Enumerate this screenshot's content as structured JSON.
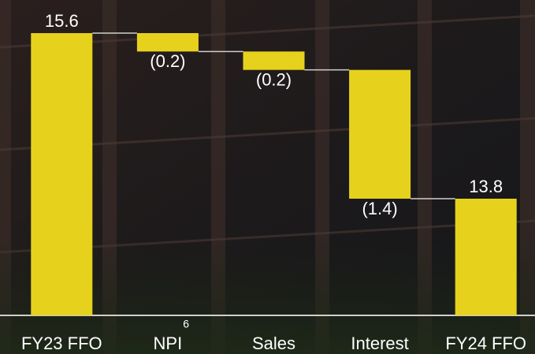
{
  "chart_data": {
    "type": "waterfall",
    "categories": [
      "FY23 FFO",
      "NPI",
      "Sales",
      "Interest",
      "FY24 FFO"
    ],
    "category_footnotes": [
      null,
      "6",
      null,
      null,
      null
    ],
    "measure": [
      "absolute",
      "relative",
      "relative",
      "relative",
      "total"
    ],
    "values": [
      15.6,
      -0.2,
      -0.2,
      -1.4,
      13.8
    ],
    "value_labels": [
      "15.6",
      "(0.2)",
      "(0.2)",
      "(1.4)",
      "13.8"
    ],
    "color": "#e6d21c"
  }
}
